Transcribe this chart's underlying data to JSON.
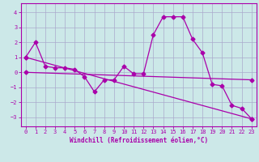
{
  "xlabel": "Windchill (Refroidissement éolien,°C)",
  "background_color": "#cce8e8",
  "grid_color": "#aaaacc",
  "line_color": "#aa00aa",
  "spine_color": "#aa00aa",
  "xlim": [
    -0.5,
    23.5
  ],
  "ylim": [
    -3.6,
    4.6
  ],
  "yticks": [
    -3,
    -2,
    -1,
    0,
    1,
    2,
    3,
    4
  ],
  "xticks": [
    0,
    1,
    2,
    3,
    4,
    5,
    6,
    7,
    8,
    9,
    10,
    11,
    12,
    13,
    14,
    15,
    16,
    17,
    18,
    19,
    20,
    21,
    22,
    23
  ],
  "line1_x": [
    0,
    1,
    2,
    3,
    4,
    5,
    6,
    7,
    8,
    9,
    10,
    11,
    12,
    13,
    14,
    15,
    16,
    17,
    18,
    19,
    20,
    21,
    22,
    23
  ],
  "line1_y": [
    1.0,
    2.0,
    0.4,
    0.3,
    0.3,
    0.2,
    -0.3,
    -1.3,
    -0.5,
    -0.5,
    0.4,
    -0.1,
    -0.1,
    2.5,
    3.7,
    3.7,
    3.7,
    2.2,
    1.3,
    -0.8,
    -0.9,
    -2.2,
    -2.4,
    -3.1
  ],
  "line2_x": [
    0,
    23
  ],
  "line2_y": [
    1.0,
    -3.1
  ],
  "line3_x": [
    0,
    23
  ],
  "line3_y": [
    0.0,
    -0.5
  ],
  "tick_fontsize": 5.0,
  "xlabel_fontsize": 5.5,
  "marker_size": 2.5,
  "linewidth": 0.9
}
